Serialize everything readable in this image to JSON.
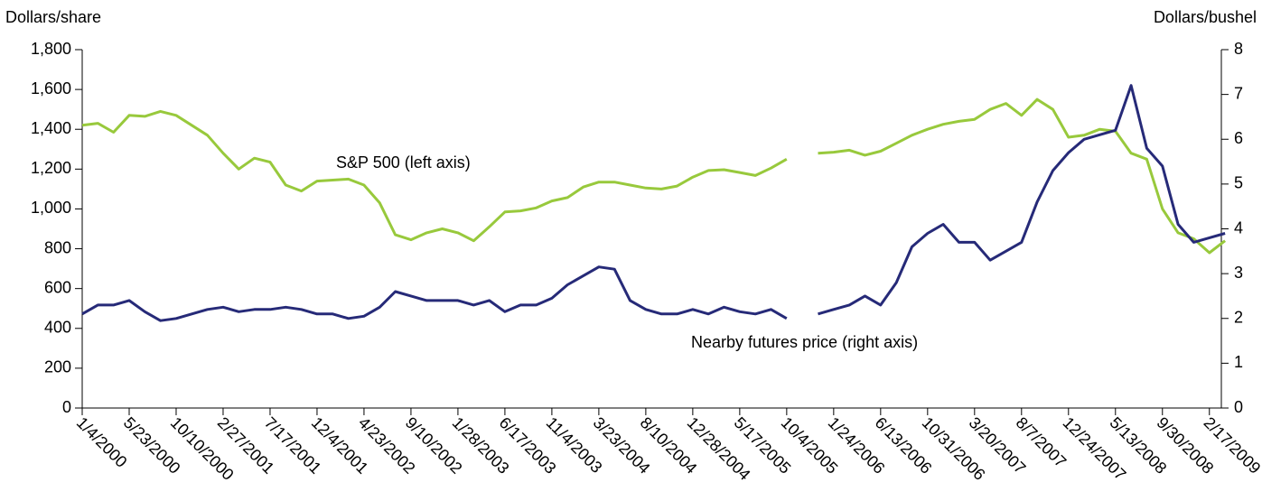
{
  "chart_data": {
    "type": "line",
    "y_label": "Dollars/share",
    "y2_label": "Dollars/bushel",
    "categories": [
      "1/4/2000",
      null,
      null,
      "5/23/2000",
      null,
      null,
      "10/10/2000",
      null,
      null,
      "2/27/2001",
      null,
      null,
      "7/17/2001",
      null,
      null,
      "12/4/2001",
      null,
      null,
      "4/23/2002",
      null,
      null,
      "9/10/2002",
      null,
      null,
      "1/28/2003",
      null,
      null,
      "6/17/2003",
      null,
      null,
      "11/4/2003",
      null,
      null,
      "3/23/2004",
      null,
      null,
      "8/10/2004",
      null,
      null,
      "12/28/2004",
      null,
      null,
      "5/17/2005",
      null,
      null,
      "10/4/2005",
      null,
      null,
      "1/24/2006",
      null,
      null,
      "6/13/2006",
      null,
      null,
      "10/31/2006",
      null,
      null,
      "3/20/2007",
      null,
      null,
      "8/7/2007",
      null,
      null,
      "12/24/2007",
      null,
      null,
      "5/13/2008",
      null,
      null,
      "9/30/2008",
      null,
      null,
      "2/17/2009",
      null
    ],
    "series": [
      {
        "name": "S&P 500 (left axis)",
        "color": "#98c93c",
        "axis": "y",
        "values": [
          1420,
          1430,
          1385,
          1470,
          1465,
          1490,
          1470,
          1420,
          1370,
          1280,
          1200,
          1255,
          1235,
          1120,
          1090,
          1140,
          1145,
          1150,
          1120,
          1030,
          870,
          845,
          880,
          900,
          880,
          840,
          910,
          985,
          990,
          1005,
          1040,
          1057,
          1110,
          1135,
          1135,
          1120,
          1105,
          1100,
          1115,
          1160,
          1193,
          1197,
          1183,
          1168,
          1205,
          1250,
          null,
          1280,
          1285,
          1295,
          1270,
          1290,
          1330,
          1370,
          1400,
          1425,
          1440,
          1450,
          1500,
          1530,
          1470,
          1550,
          1500,
          1360,
          1370,
          1400,
          1390,
          1280,
          1250,
          1000,
          880,
          850,
          780,
          840
        ]
      },
      {
        "name": "Nearby futures price (right axis)",
        "color": "#262a78",
        "axis": "y2",
        "values": [
          2.1,
          2.3,
          2.3,
          2.4,
          2.15,
          1.95,
          2.0,
          2.1,
          2.2,
          2.25,
          2.15,
          2.2,
          2.2,
          2.25,
          2.2,
          2.1,
          2.1,
          2.0,
          2.05,
          2.25,
          2.6,
          2.5,
          2.4,
          2.4,
          2.4,
          2.3,
          2.4,
          2.15,
          2.3,
          2.3,
          2.45,
          2.75,
          2.95,
          3.15,
          3.1,
          2.4,
          2.2,
          2.1,
          2.1,
          2.2,
          2.1,
          2.25,
          2.15,
          2.1,
          2.2,
          2.0,
          null,
          2.1,
          2.2,
          2.3,
          2.5,
          2.3,
          2.8,
          3.6,
          3.9,
          4.1,
          3.7,
          3.7,
          3.3,
          3.5,
          3.7,
          4.6,
          5.3,
          5.7,
          6.0,
          6.1,
          6.2,
          7.2,
          5.8,
          5.4,
          4.1,
          3.7,
          3.8,
          3.9
        ]
      }
    ],
    "ylim": [
      0,
      1800
    ],
    "yticks": [
      0,
      200,
      400,
      600,
      800,
      {
        "value": 1000,
        "label": "1,000"
      },
      {
        "value": 1200,
        "label": "1,200"
      },
      {
        "value": 1400,
        "label": "1,400"
      },
      {
        "value": 1600,
        "label": "1,600"
      },
      {
        "value": 1800,
        "label": "1,800"
      }
    ],
    "y2lim": [
      0,
      8
    ],
    "y2ticks": [
      0,
      1,
      2,
      3,
      4,
      5,
      6,
      7,
      8
    ],
    "grid": false
  }
}
